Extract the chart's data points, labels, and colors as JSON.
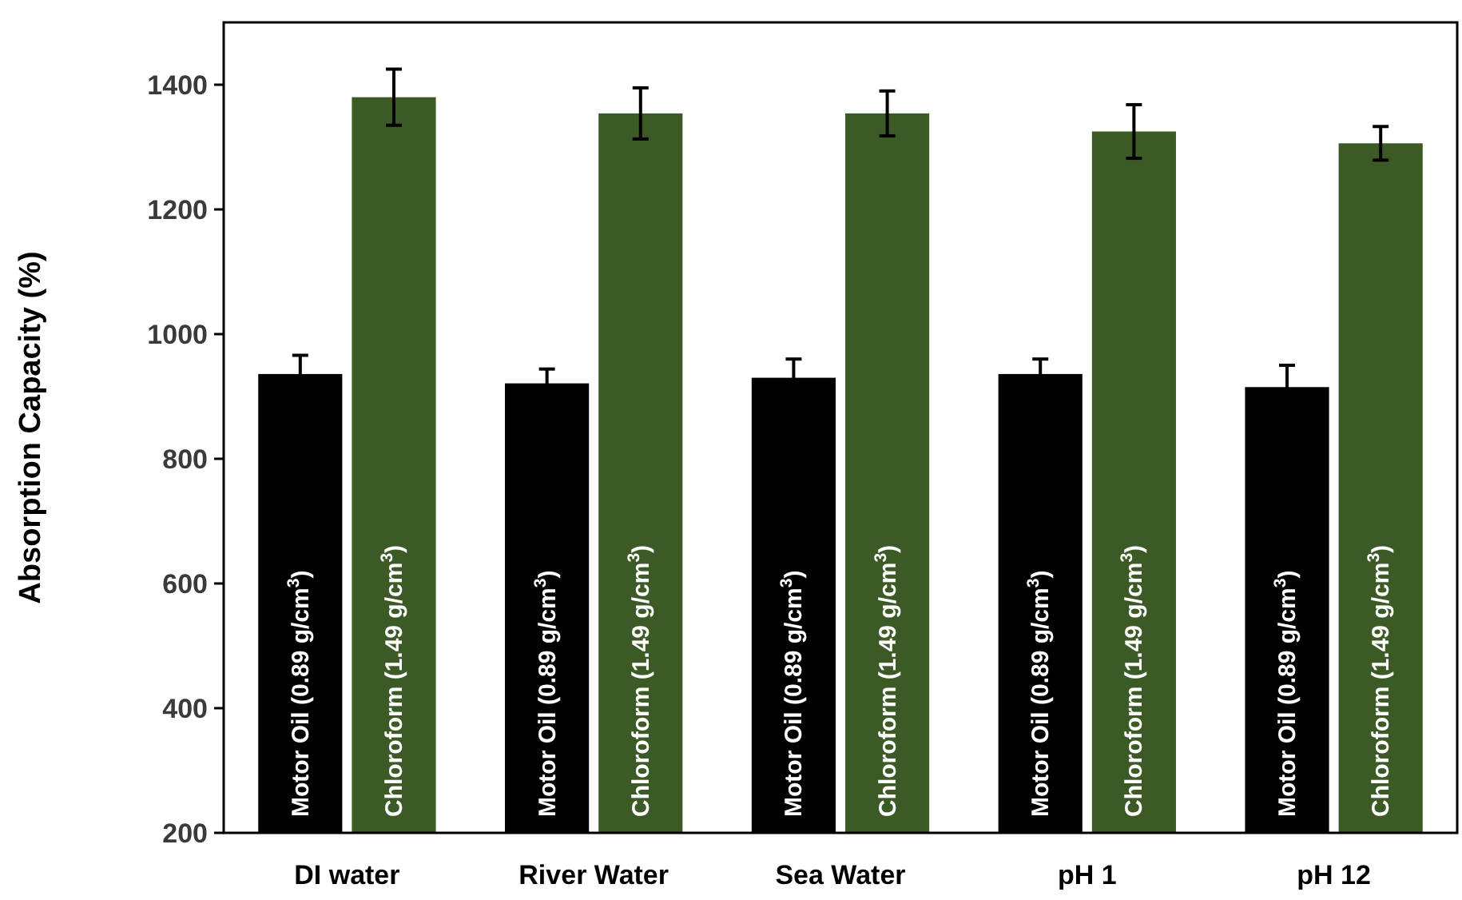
{
  "chart_data": {
    "type": "bar",
    "ylabel": "Absorption Capacity (%)",
    "categories": [
      "DI water",
      "River Water",
      "Sea Water",
      "pH 1",
      "pH 12"
    ],
    "series": [
      {
        "name": "Motor Oil (0.89 g/cm$^{3}$)",
        "color": "#000000",
        "values": [
          936,
          921,
          930,
          936,
          915
        ],
        "errors": [
          30,
          23,
          30,
          24,
          35
        ]
      },
      {
        "name": "Chloroform (1.49 g/cm$^{3}$)",
        "color": "#3c5a25",
        "values": [
          1380,
          1354,
          1354,
          1325,
          1306
        ],
        "errors": [
          45,
          41,
          36,
          43,
          27
        ]
      }
    ],
    "ylim": [
      200,
      1500
    ],
    "yticks": [
      200,
      400,
      600,
      800,
      1000,
      1200,
      1400
    ],
    "grid": false
  }
}
